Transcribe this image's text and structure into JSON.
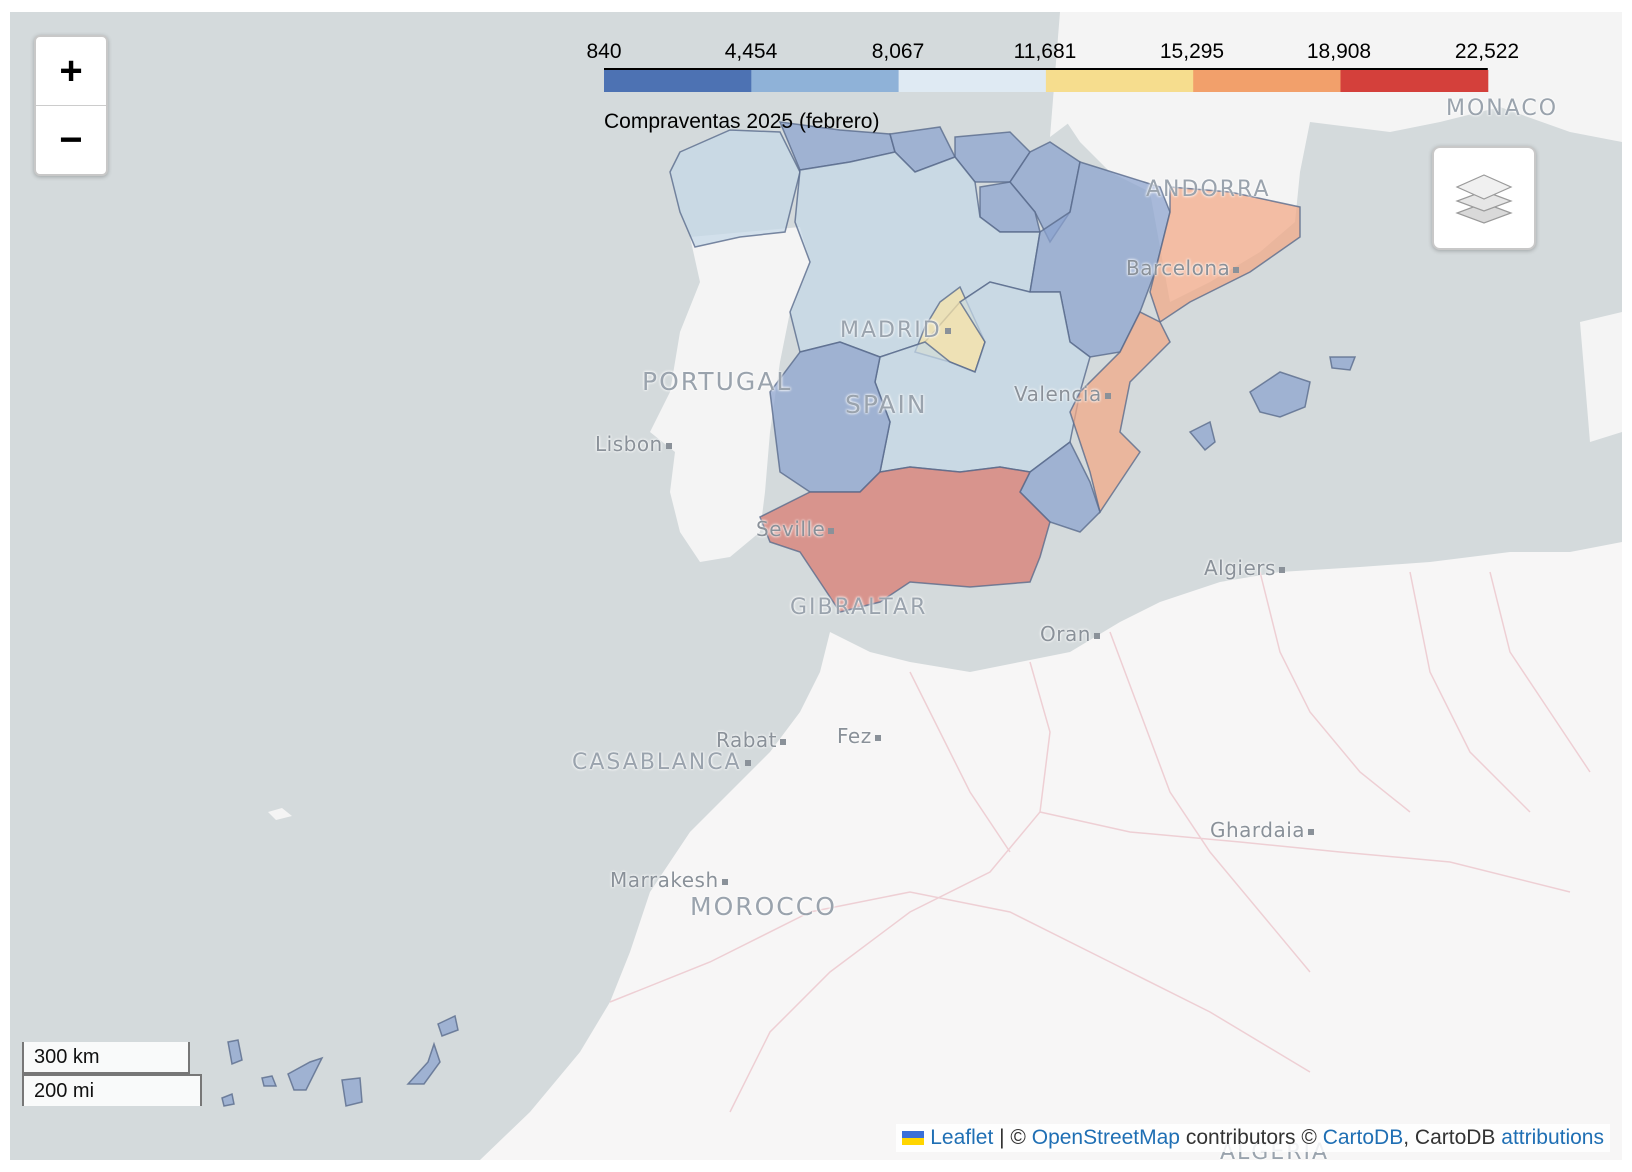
{
  "map": {
    "zoom_in_label": "+",
    "zoom_out_label": "−",
    "layers_icon": "layers-icon",
    "legend": {
      "ticks": [
        "840",
        "4,454",
        "8,067",
        "11,681",
        "15,295",
        "18,908",
        "22,522"
      ],
      "caption": "Compraventas 2025 (febrero)",
      "colors": [
        "#4d72b3",
        "#8fb2d8",
        "#dfeaf3",
        "#f6dd8e",
        "#f2a06b",
        "#d4403b"
      ]
    },
    "city_labels": [
      "Lisbon",
      "Seville",
      "Valencia",
      "Barcelona",
      "Algiers",
      "Oran",
      "Rabat",
      "Fez",
      "Marrakesh",
      "Ghardaia"
    ],
    "capital_labels": [
      "MADRID",
      "CASABLANCA"
    ],
    "country_labels": [
      "PORTUGAL",
      "SPAIN",
      "ANDORRA",
      "MONACO",
      "GIBRALTAR",
      "MOROCCO",
      "ALGERIA"
    ],
    "scale": {
      "km": "300 km",
      "mi": "200 mi"
    },
    "attribution": {
      "leaflet": "Leaflet",
      "sep1": " | © ",
      "osm": "OpenStreetMap",
      "mid": " contributors © ",
      "carto": "CartoDB",
      "mid2": ", CartoDB ",
      "attributions": "attributions"
    },
    "regions": [
      {
        "name": "Andalucía",
        "color": "#d4403b"
      },
      {
        "name": "Cataluña",
        "color": "#f2a06b"
      },
      {
        "name": "Comunitat Valenciana",
        "color": "#f2a06b"
      },
      {
        "name": "Madrid",
        "color": "#f6dd8e"
      },
      {
        "name": "Castilla y León",
        "color": "#b8d0e6"
      },
      {
        "name": "Castilla-La Mancha",
        "color": "#b8d0e6"
      },
      {
        "name": "Galicia",
        "color": "#b8d0e6"
      },
      {
        "name": "Extremadura",
        "color": "#4d72b3"
      },
      {
        "name": "Aragón",
        "color": "#4d72b3"
      },
      {
        "name": "Asturias",
        "color": "#4d72b3"
      },
      {
        "name": "Cantabria",
        "color": "#4d72b3"
      },
      {
        "name": "País Vasco",
        "color": "#4d72b3"
      },
      {
        "name": "Navarra",
        "color": "#4d72b3"
      },
      {
        "name": "La Rioja",
        "color": "#4d72b3"
      },
      {
        "name": "Murcia",
        "color": "#4d72b3"
      },
      {
        "name": "Illes Balears",
        "color": "#4d72b3"
      },
      {
        "name": "Canarias",
        "color": "#4d72b3"
      }
    ]
  }
}
